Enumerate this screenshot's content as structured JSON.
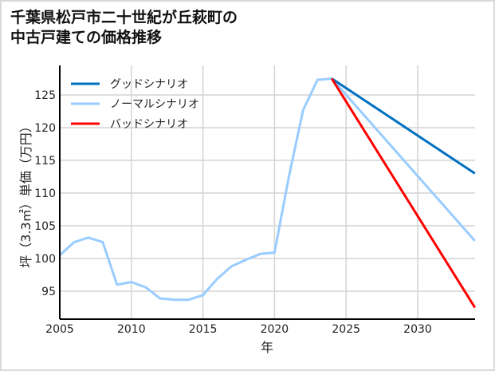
{
  "title_line1": "千葉県松戸市二十世紀が丘萩町の",
  "title_line2": "中古戸建ての価格推移",
  "chart_data": {
    "type": "line",
    "title": "千葉県松戸市二十世紀が丘萩町の中古戸建ての価格推移",
    "xlabel": "年",
    "ylabel": "坪（3.3㎡）単価（万円）",
    "xlim": [
      2005,
      2034
    ],
    "ylim": [
      91,
      129
    ],
    "xticks": [
      2005,
      2010,
      2015,
      2020,
      2025,
      2030
    ],
    "yticks": [
      95,
      100,
      105,
      110,
      115,
      120,
      125
    ],
    "grid": true,
    "legend_position": "upper left",
    "series": [
      {
        "name": "グッドシナリオ",
        "color": "#0070c0",
        "x": [
          2024,
          2034
        ],
        "values": [
          127.5,
          113.0
        ]
      },
      {
        "name": "ノーマルシナリオ",
        "color": "#99ccff",
        "x": [
          2005,
          2006,
          2007,
          2008,
          2009,
          2010,
          2011,
          2012,
          2013,
          2014,
          2015,
          2016,
          2017,
          2018,
          2019,
          2020,
          2021,
          2022,
          2023,
          2024,
          2034
        ],
        "values": [
          100.5,
          102.5,
          103.2,
          102.5,
          96.0,
          96.4,
          95.6,
          93.9,
          93.7,
          93.7,
          94.4,
          96.9,
          98.8,
          99.8,
          100.7,
          100.9,
          112.5,
          122.7,
          127.3,
          127.5,
          102.7
        ]
      },
      {
        "name": "バッドシナリオ",
        "color": "#ff0000",
        "x": [
          2024,
          2034
        ],
        "values": [
          127.5,
          92.5
        ]
      }
    ]
  }
}
